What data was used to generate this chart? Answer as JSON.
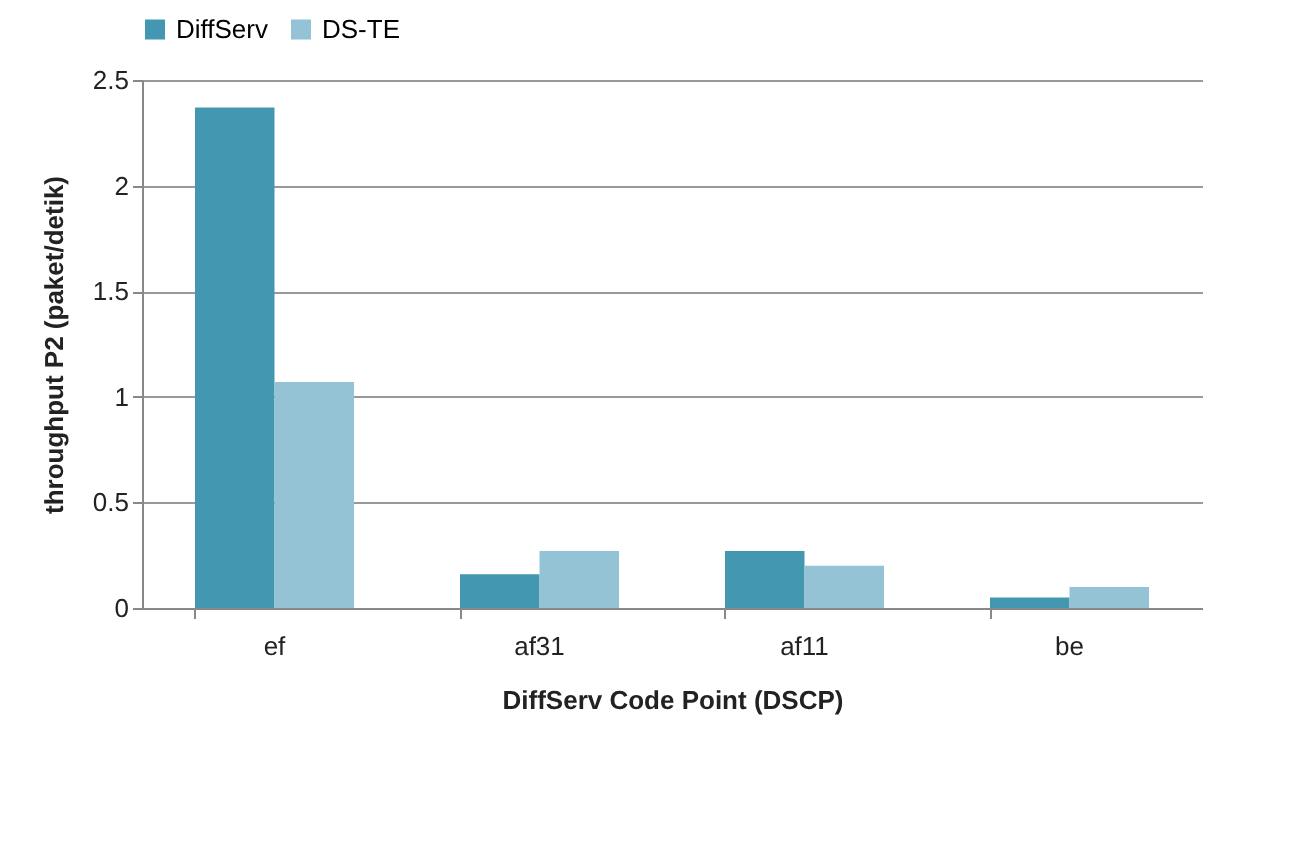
{
  "chart_data": {
    "type": "bar",
    "xlabel": "DiffServ Code Point (DSCP)",
    "ylabel": "throughput P2 (paket/detik)",
    "categories": [
      "ef",
      "af31",
      "af11",
      "be"
    ],
    "series": [
      {
        "name": "DiffServ",
        "color": "#4397b0",
        "values": [
          2.37,
          0.16,
          0.27,
          0.05
        ]
      },
      {
        "name": "DS-TE",
        "color": "#93c3d5",
        "values": [
          1.07,
          0.27,
          0.2,
          0.1
        ]
      }
    ],
    "ylim": [
      0,
      2.5
    ],
    "yticks": [
      0,
      0.5,
      1,
      1.5,
      2,
      2.5
    ],
    "grid": "y",
    "legend": "top"
  }
}
